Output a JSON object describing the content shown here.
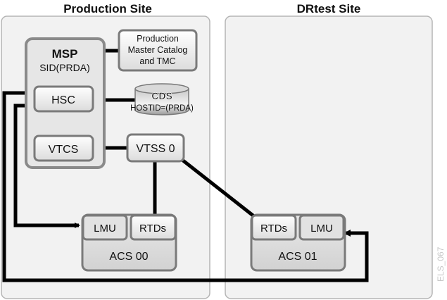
{
  "sites": {
    "production": {
      "title": "Production Site"
    },
    "drtest": {
      "title": "DRtest Site"
    }
  },
  "nodes": {
    "msp": {
      "title": "MSP",
      "subtitle": "SID(PRDA)"
    },
    "catalog": {
      "line1": "Production",
      "line2": "Master Catalog",
      "line3": "and TMC"
    },
    "hsc": {
      "label": "HSC"
    },
    "cds": {
      "label": "CDS",
      "sublabel": "HOSTID=(PRDA)"
    },
    "vtcs": {
      "label": "VTCS"
    },
    "vtss0": {
      "label": "VTSS 0"
    },
    "acs00": {
      "label": "ACS 00",
      "lmu": "LMU",
      "rtds": "RTDs"
    },
    "acs01": {
      "label": "ACS 01",
      "lmu": "LMU",
      "rtds": "RTDs"
    }
  },
  "watermark": "ELS_067"
}
